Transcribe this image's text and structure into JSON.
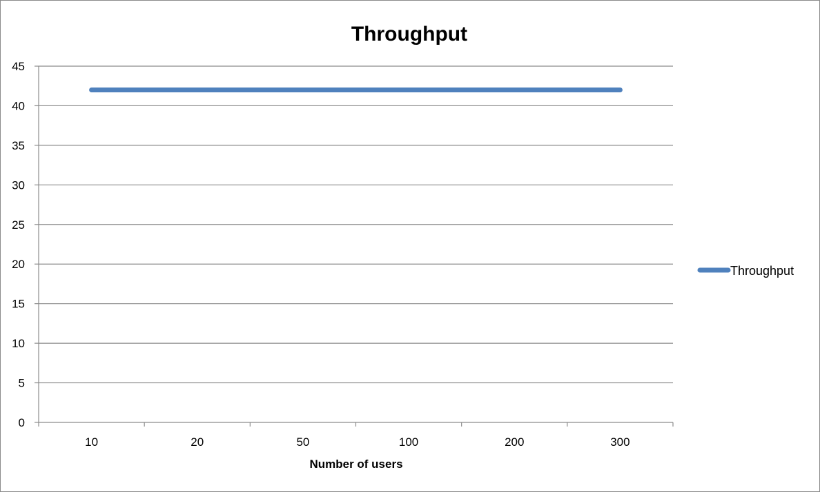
{
  "chart_data": {
    "type": "line",
    "title": "Throughput",
    "xlabel": "Number of users",
    "ylabel": "",
    "categories": [
      "10",
      "20",
      "50",
      "100",
      "200",
      "300"
    ],
    "series": [
      {
        "name": "Throughput",
        "values": [
          42,
          42,
          42,
          42,
          42,
          42
        ],
        "color": "#4f81bd"
      }
    ],
    "ylim": [
      0,
      45
    ],
    "yticks": [
      0,
      5,
      10,
      15,
      20,
      25,
      30,
      35,
      40,
      45
    ],
    "grid": "horizontal",
    "legend": "right"
  }
}
